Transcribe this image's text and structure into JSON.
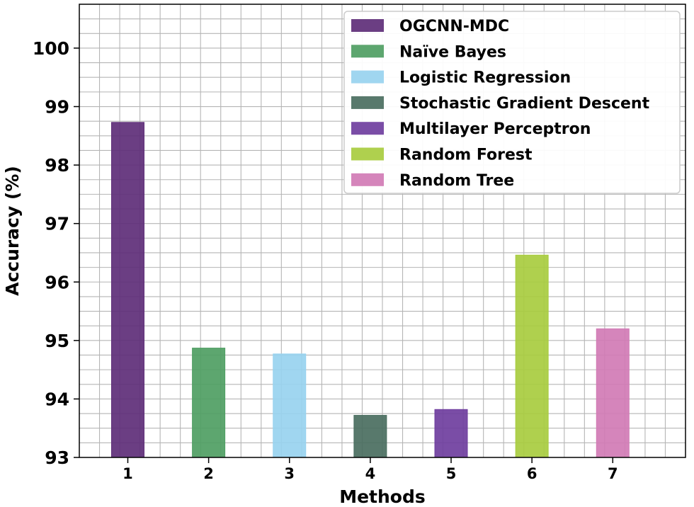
{
  "chart_data": {
    "type": "bar",
    "categories": [
      "1",
      "2",
      "3",
      "4",
      "5",
      "6",
      "7"
    ],
    "values": [
      98.73,
      94.87,
      94.77,
      93.72,
      93.82,
      96.46,
      95.2
    ],
    "series_names": [
      "OGCNN-MDC",
      "Naïve Bayes",
      "Logistic Regression",
      "Stochastic Gradient Descent",
      "Multilayer Perceptron",
      "Random Forest",
      "Random Tree"
    ],
    "colors": [
      "#5e2e78",
      "#4f9e63",
      "#98d2ef",
      "#4a6e5f",
      "#6f3e9e",
      "#a8cc3f",
      "#d17bb5"
    ],
    "xlabel": "Methods",
    "ylabel": "Accuracy (%)",
    "ylim": [
      93,
      100.75
    ],
    "yticks": [
      "93",
      "94",
      "95",
      "96",
      "97",
      "98",
      "99",
      "100"
    ],
    "grid": true,
    "legend_position": "top-right"
  }
}
